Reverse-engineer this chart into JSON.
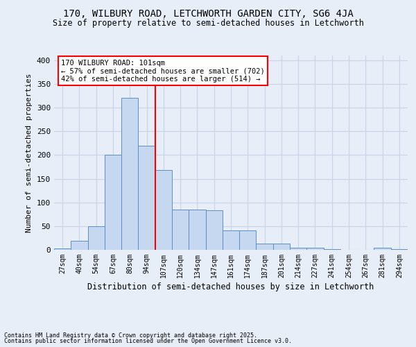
{
  "title1": "170, WILBURY ROAD, LETCHWORTH GARDEN CITY, SG6 4JA",
  "title2": "Size of property relative to semi-detached houses in Letchworth",
  "xlabel": "Distribution of semi-detached houses by size in Letchworth",
  "ylabel": "Number of semi-detached properties",
  "bin_labels": [
    "27sqm",
    "40sqm",
    "54sqm",
    "67sqm",
    "80sqm",
    "94sqm",
    "107sqm",
    "120sqm",
    "134sqm",
    "147sqm",
    "161sqm",
    "174sqm",
    "187sqm",
    "201sqm",
    "214sqm",
    "227sqm",
    "241sqm",
    "254sqm",
    "267sqm",
    "281sqm",
    "294sqm"
  ],
  "bar_heights": [
    3,
    19,
    50,
    200,
    320,
    220,
    168,
    85,
    85,
    83,
    41,
    41,
    13,
    13,
    5,
    5,
    1,
    0,
    0,
    5,
    1
  ],
  "bar_color": "#c5d8f0",
  "bar_edge_color": "#5b8fc9",
  "vline_color": "red",
  "annotation_line1": "170 WILBURY ROAD: 101sqm",
  "annotation_line2": "← 57% of semi-detached houses are smaller (702)",
  "annotation_line3": "42% of semi-detached houses are larger (514) →",
  "annotation_box_color": "white",
  "annotation_box_edge": "red",
  "footer1": "Contains HM Land Registry data © Crown copyright and database right 2025.",
  "footer2": "Contains public sector information licensed under the Open Government Licence v3.0.",
  "ylim": [
    0,
    410
  ],
  "yticks": [
    0,
    50,
    100,
    150,
    200,
    250,
    300,
    350,
    400
  ],
  "background_color": "#e8eef7",
  "grid_color": "#c8d4e8"
}
